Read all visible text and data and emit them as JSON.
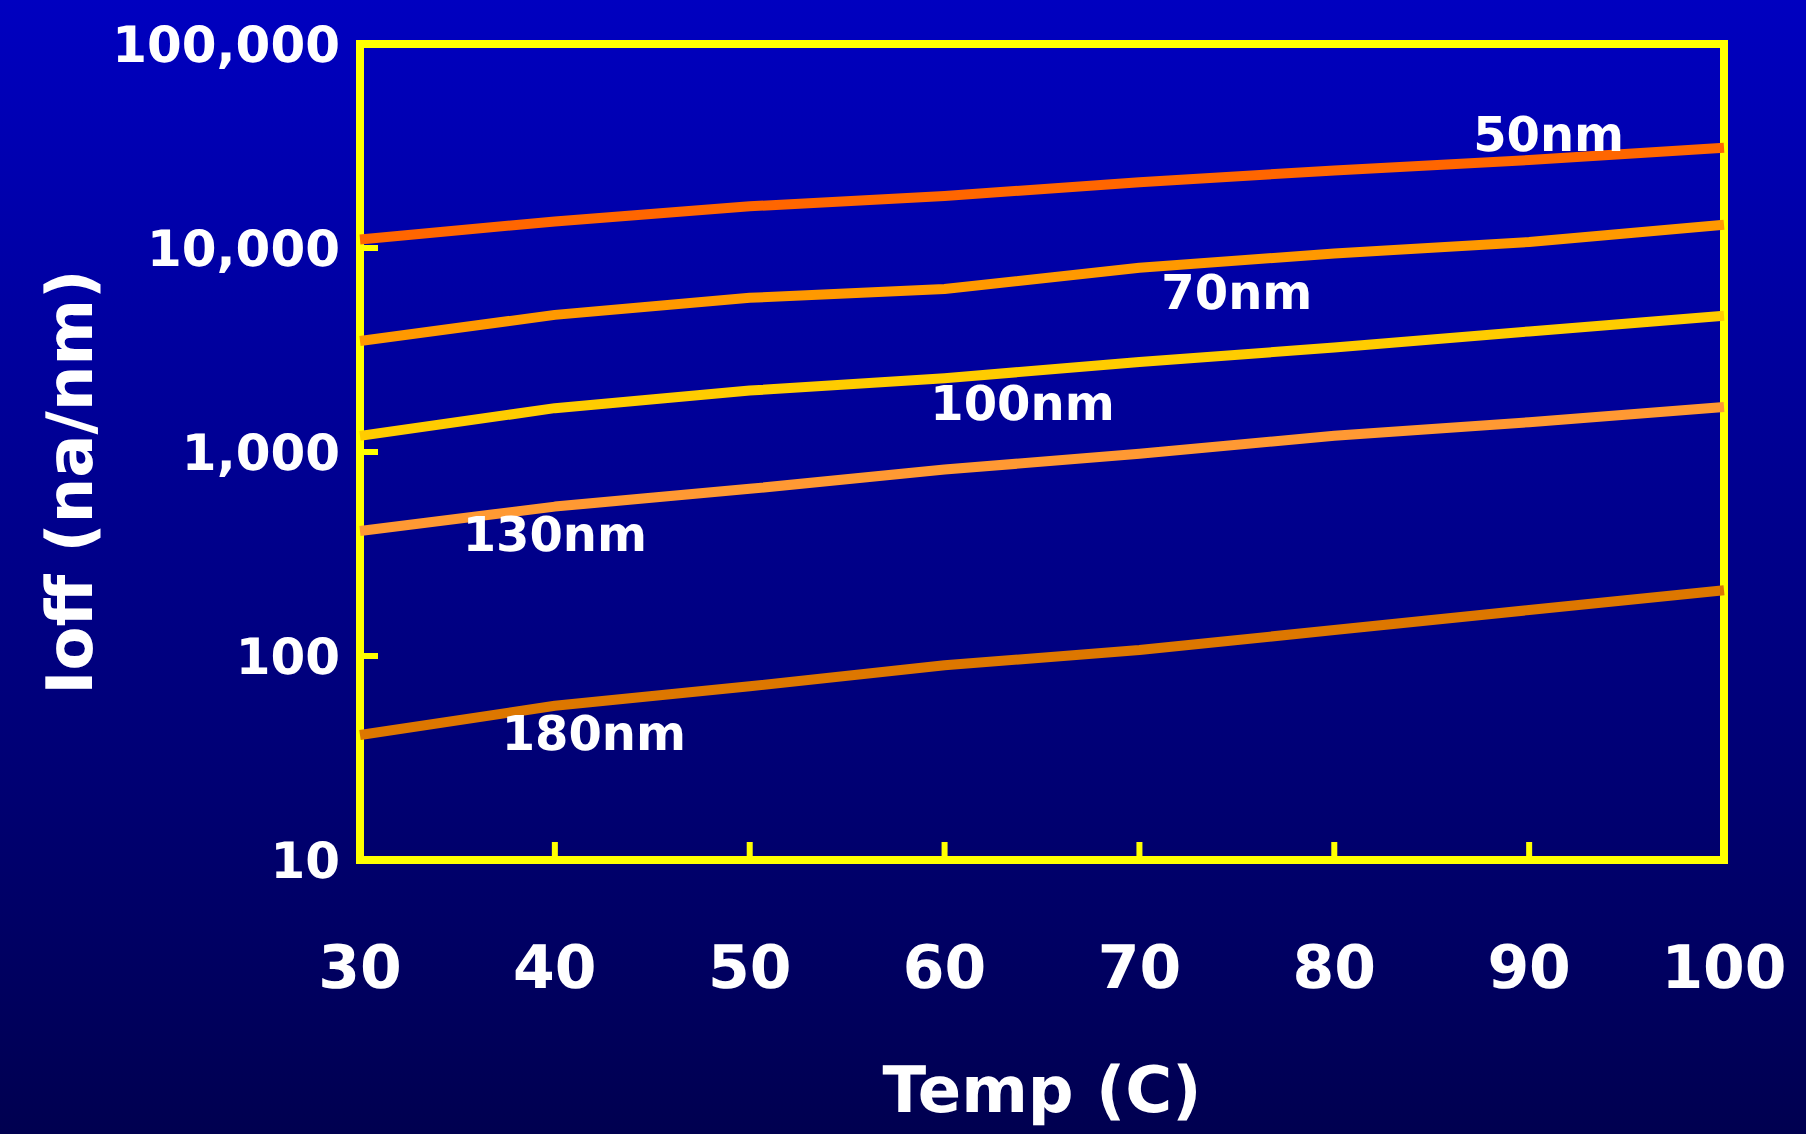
{
  "chart_data": {
    "type": "line",
    "xlabel": "Temp (C)",
    "ylabel": "Ioff (na/nm)",
    "log": "y",
    "x": [
      30,
      40,
      50,
      60,
      70,
      80,
      90,
      100
    ],
    "xlim": [
      30,
      100
    ],
    "xticks": [
      30,
      40,
      50,
      60,
      70,
      80,
      90,
      100
    ],
    "ylim": [
      10,
      100000
    ],
    "yticks": [
      10,
      100,
      {
        "value": 1000,
        "label": "1,000"
      },
      {
        "value": 10000,
        "label": "10,000"
      },
      {
        "value": 100000,
        "label": "100,000"
      }
    ],
    "marker": "none",
    "line_style": "solid",
    "series": [
      {
        "name": "50nm",
        "color": "#ff6600",
        "values": [
          11000,
          13500,
          16000,
          18000,
          21000,
          24000,
          27000,
          31000
        ]
      },
      {
        "name": "70nm",
        "color": "#ff9900",
        "values": [
          3500,
          4700,
          5700,
          6300,
          8000,
          9400,
          10700,
          13000
        ]
      },
      {
        "name": "100nm",
        "color": "#ffcc00",
        "values": [
          1200,
          1640,
          2000,
          2300,
          2760,
          3250,
          3900,
          4650
        ]
      },
      {
        "name": "130nm",
        "color": "#ff9933",
        "values": [
          410,
          540,
          660,
          820,
          980,
          1200,
          1400,
          1660
        ]
      },
      {
        "name": "180nm",
        "color": "#dd7700",
        "values": [
          41,
          57,
          71,
          90,
          107,
          134,
          168,
          210
        ]
      }
    ]
  }
}
